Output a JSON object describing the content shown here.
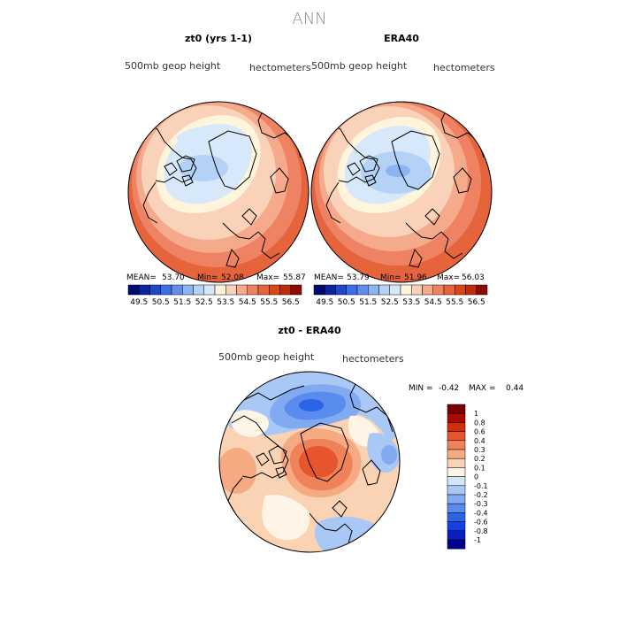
{
  "page_title": "ANN",
  "chart_data": [
    {
      "type": "heatmap",
      "title": "zt0 (yrs 1-1)",
      "field": "500mb geop height",
      "units": "hectometers",
      "stats": {
        "mean_label": "MEAN=",
        "mean": "53.70",
        "min_label": "Min=",
        "min": "52.08",
        "max_label": "Max=",
        "max": "55.87"
      },
      "colorbar": {
        "orientation": "horizontal",
        "labels": [
          "49.5",
          "50.5",
          "51.5",
          "52.5",
          "53.5",
          "54.5",
          "55.5",
          "56.5"
        ]
      }
    },
    {
      "type": "heatmap",
      "title": "ERA40",
      "field": "500mb geop height",
      "units": "hectometers",
      "stats": {
        "mean_label": "MEAN=",
        "mean": "53.79",
        "min_label": "Min=",
        "min": "51.96",
        "max_label": "Max=",
        "max": "56.03"
      },
      "colorbar": {
        "orientation": "horizontal",
        "labels": [
          "49.5",
          "50.5",
          "51.5",
          "52.5",
          "53.5",
          "54.5",
          "55.5",
          "56.5"
        ]
      }
    },
    {
      "type": "heatmap",
      "title": "zt0 - ERA40",
      "field": "500mb geop height",
      "units": "hectometers",
      "stats": {
        "min_label": "MIN =",
        "min": "-0.42",
        "max_label": "MAX =",
        "max": "0.44"
      },
      "colorbar": {
        "orientation": "vertical",
        "labels": [
          "1",
          "0.8",
          "0.6",
          "0.4",
          "0.3",
          "0.2",
          "0.1",
          "0",
          "-0.1",
          "-0.2",
          "-0.3",
          "-0.4",
          "-0.6",
          "-0.8",
          "-1"
        ]
      }
    }
  ],
  "colors": {
    "h_scale": [
      "#000a6e",
      "#0a23a0",
      "#1e46c8",
      "#3c6ee6",
      "#648ce6",
      "#8cb4f0",
      "#b4d2f5",
      "#d7e8fa",
      "#fff5dc",
      "#fad2b9",
      "#f5aa8c",
      "#f08264",
      "#e6643c",
      "#dc4614",
      "#be2d0a",
      "#8c0a00"
    ],
    "d_scale": [
      "#00008c",
      "#0a1ebe",
      "#1441e6",
      "#2d64e6",
      "#5a8cf0",
      "#82aaf0",
      "#aac8f5",
      "#d2e6fa",
      "#fff5e6",
      "#fad2b4",
      "#f5aa82",
      "#f0825a",
      "#e6552d",
      "#d22d0a",
      "#aa0a00",
      "#780000"
    ],
    "coast": "#000000"
  }
}
